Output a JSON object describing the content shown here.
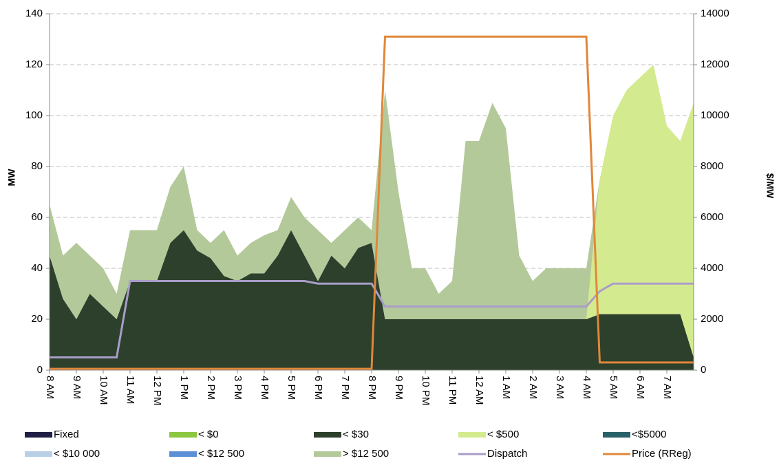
{
  "chart_data": {
    "type": "stacked-area",
    "y_label": "MW",
    "y2_label": "$/MW",
    "categories": [
      "8 AM",
      null,
      "9 AM",
      null,
      "10 AM",
      null,
      "11 AM",
      null,
      "12 PM",
      null,
      "1 PM",
      null,
      "2 PM",
      null,
      "3 PM",
      null,
      "4 PM",
      null,
      "5 PM",
      null,
      "6 PM",
      null,
      "7 PM",
      null,
      "8 PM",
      null,
      "9 PM",
      null,
      "10 PM",
      null,
      "11 PM",
      null,
      "12 AM",
      null,
      "1 AM",
      null,
      "2 AM",
      null,
      "3 AM",
      null,
      "4 AM",
      null,
      "5 AM",
      null,
      "6 AM",
      null,
      "7 AM",
      null,
      null
    ],
    "ylim": [
      0,
      140
    ],
    "yticks": [
      0,
      20,
      40,
      60,
      80,
      100,
      120,
      140
    ],
    "y2lim": [
      0,
      14000
    ],
    "y2ticks": [
      0,
      2000,
      4000,
      6000,
      8000,
      10000,
      12000,
      14000
    ],
    "grid": true,
    "series": [
      {
        "name": "Fixed",
        "color": "#1f1f45",
        "values": [
          0,
          0,
          0,
          0,
          0,
          0,
          0,
          0,
          0,
          0,
          0,
          0,
          0,
          0,
          0,
          0,
          0,
          0,
          0,
          0,
          0,
          0,
          0,
          0,
          0,
          0,
          0,
          0,
          0,
          0,
          0,
          0,
          0,
          0,
          0,
          0,
          0,
          0,
          0,
          0,
          0,
          0,
          0,
          0,
          0,
          0,
          0,
          0,
          0
        ]
      },
      {
        "name": "< $0",
        "color": "#8dc63f",
        "values": [
          0,
          0,
          0,
          0,
          0,
          0,
          0,
          0,
          0,
          0,
          0,
          0,
          0,
          0,
          0,
          0,
          0,
          0,
          0,
          0,
          0,
          0,
          0,
          0,
          0,
          0,
          0,
          0,
          0,
          0,
          0,
          0,
          0,
          0,
          0,
          0,
          0,
          0,
          0,
          0,
          0,
          0,
          0,
          0,
          0,
          0,
          0,
          0,
          0
        ]
      },
      {
        "name": "< $30",
        "color": "#2c402c",
        "values": [
          45,
          28,
          20,
          30,
          25,
          20,
          35,
          35,
          35,
          50,
          55,
          47,
          44,
          37,
          35,
          38,
          38,
          45,
          55,
          45,
          35,
          45,
          40,
          48,
          50,
          20,
          20,
          20,
          20,
          20,
          20,
          20,
          20,
          20,
          20,
          20,
          20,
          20,
          20,
          20,
          20,
          22,
          22,
          22,
          22,
          22,
          22,
          22,
          5
        ]
      },
      {
        "name": "< $500",
        "color": "#d4ea8e",
        "values": [
          0,
          0,
          0,
          0,
          0,
          0,
          0,
          0,
          0,
          0,
          0,
          0,
          0,
          0,
          0,
          0,
          0,
          0,
          0,
          0,
          0,
          0,
          0,
          0,
          0,
          0,
          0,
          0,
          0,
          0,
          0,
          0,
          0,
          0,
          0,
          0,
          0,
          0,
          0,
          0,
          0,
          53,
          78,
          88,
          93,
          98,
          74,
          68,
          100
        ]
      },
      {
        "name": "<$5000",
        "color": "#2a6168",
        "values": [
          0,
          0,
          0,
          0,
          0,
          0,
          0,
          0,
          0,
          0,
          0,
          0,
          0,
          0,
          0,
          0,
          0,
          0,
          0,
          0,
          0,
          0,
          0,
          0,
          0,
          0,
          0,
          0,
          0,
          0,
          0,
          0,
          0,
          0,
          0,
          0,
          0,
          0,
          0,
          0,
          0,
          0,
          0,
          0,
          0,
          0,
          0,
          0,
          0
        ]
      },
      {
        "name": "< $10 000",
        "color": "#b8cfe6",
        "values": [
          0,
          0,
          0,
          0,
          0,
          0,
          0,
          0,
          0,
          0,
          0,
          0,
          0,
          0,
          0,
          0,
          0,
          0,
          0,
          0,
          0,
          0,
          0,
          0,
          0,
          0,
          0,
          0,
          0,
          0,
          0,
          0,
          0,
          0,
          0,
          0,
          0,
          0,
          0,
          0,
          0,
          0,
          0,
          0,
          0,
          0,
          0,
          0,
          0
        ]
      },
      {
        "name": "< $12 500",
        "color": "#5b8fd6",
        "values": [
          0,
          0,
          0,
          0,
          0,
          0,
          0,
          0,
          0,
          0,
          0,
          0,
          0,
          0,
          0,
          0,
          0,
          0,
          0,
          0,
          0,
          0,
          0,
          0,
          0,
          0,
          0,
          0,
          0,
          0,
          0,
          0,
          0,
          0,
          0,
          0,
          0,
          0,
          0,
          0,
          0,
          0,
          0,
          0,
          0,
          0,
          0,
          0,
          0
        ]
      },
      {
        "name": "> $12 500",
        "color": "#b3c99a",
        "values": [
          20,
          17,
          30,
          15,
          15,
          10,
          20,
          20,
          20,
          22,
          25,
          8,
          6,
          18,
          10,
          12,
          15,
          10,
          13,
          15,
          20,
          5,
          15,
          12,
          5,
          90,
          50,
          20,
          20,
          10,
          15,
          70,
          70,
          85,
          75,
          25,
          15,
          20,
          20,
          20,
          20,
          0,
          0,
          0,
          0,
          0,
          0,
          0,
          0
        ]
      },
      {
        "name": "Dispatch",
        "color": "#a99dc9",
        "type": "line",
        "values": [
          5,
          5,
          5,
          5,
          5,
          5,
          35,
          35,
          35,
          35,
          35,
          35,
          35,
          35,
          35,
          35,
          35,
          35,
          35,
          35,
          34,
          34,
          34,
          34,
          34,
          25,
          25,
          25,
          25,
          25,
          25,
          25,
          25,
          25,
          25,
          25,
          25,
          25,
          25,
          25,
          25,
          31,
          34,
          34,
          34,
          34,
          34,
          34,
          34
        ]
      },
      {
        "name": "Price (RReg)",
        "color": "#e0873a",
        "type": "line",
        "axis": "y2",
        "values": [
          50,
          50,
          50,
          50,
          50,
          50,
          50,
          50,
          50,
          50,
          50,
          50,
          50,
          50,
          50,
          50,
          50,
          50,
          50,
          50,
          50,
          50,
          50,
          50,
          50,
          13100,
          13100,
          13100,
          13100,
          13100,
          13100,
          13100,
          13100,
          13100,
          13100,
          13100,
          13100,
          13100,
          13100,
          13100,
          13100,
          300,
          300,
          300,
          300,
          300,
          300,
          300,
          300
        ]
      }
    ]
  }
}
